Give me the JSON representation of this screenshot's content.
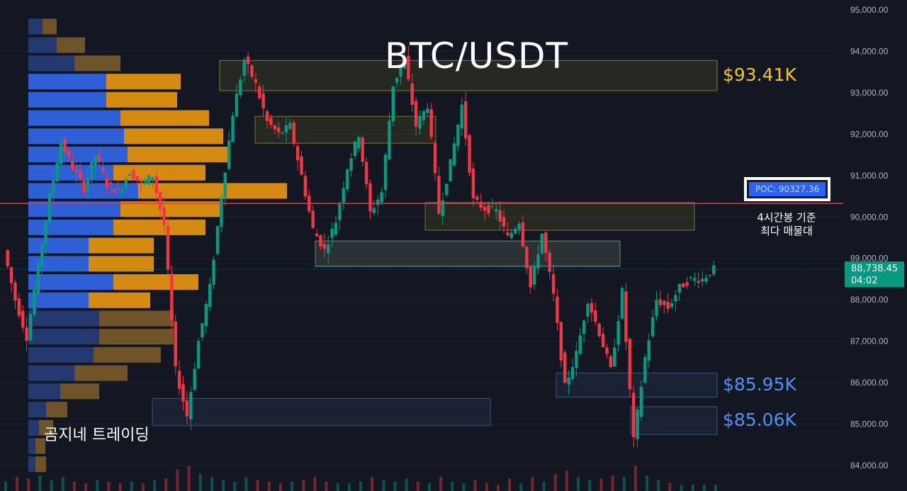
{
  "chart_data": {
    "type": "candlestick",
    "title": "BTC/USDT",
    "ylim": [
      83800,
      95250
    ],
    "y_ticks": [
      "95,000.00",
      "94,000.00",
      "93,000.00",
      "92,000.00",
      "91,000.00",
      "90,000.00",
      "89,000.00",
      "88,000.00",
      "87,000.00",
      "86,000.00",
      "85,000.00",
      "84,000.00"
    ],
    "y_tick_values": [
      95000,
      94000,
      93000,
      92000,
      91000,
      90000,
      89000,
      88000,
      87000,
      86000,
      85000,
      84000
    ],
    "last_price": "88,738.45",
    "countdown": "04:02",
    "last_price_value": 88738.45,
    "poc": {
      "label": "POC: 90327.36",
      "value": 90327.36
    },
    "poc_note_line1": "4시간봉 기준",
    "poc_note_line2": "최다 매물대",
    "watermark": "곰지네 트레이딩",
    "levels": [
      {
        "label": "$93.41K",
        "color": "#f5c518",
        "low": 93050,
        "high": 93780
      },
      {
        "label": "$85.95K",
        "color": "#4f8ff7",
        "low": 85650,
        "high": 86230
      },
      {
        "label": "$85.06K",
        "color": "#4f8ff7",
        "low": 84750,
        "high": 85420
      }
    ],
    "zones": [
      {
        "low": 91780,
        "high": 92430,
        "color": "yellow"
      },
      {
        "low": 89680,
        "high": 90350,
        "color": "yellow"
      },
      {
        "low": 88820,
        "high": 89420,
        "color": "yellow"
      },
      {
        "low": 88800,
        "high": 89420,
        "color": "blue"
      },
      {
        "low": 84960,
        "high": 85620,
        "color": "blue"
      }
    ],
    "volume_profile": [
      {
        "price": 94600,
        "buy": 20,
        "sell": 20
      },
      {
        "price": 94150,
        "buy": 40,
        "sell": 40
      },
      {
        "price": 93710,
        "buy": 65,
        "sell": 65
      },
      {
        "price": 93270,
        "buy": 110,
        "sell": 105
      },
      {
        "price": 92830,
        "buy": 110,
        "sell": 100
      },
      {
        "price": 92390,
        "buy": 130,
        "sell": 125
      },
      {
        "price": 91950,
        "buy": 135,
        "sell": 140
      },
      {
        "price": 91510,
        "buy": 140,
        "sell": 145
      },
      {
        "price": 91070,
        "buy": 120,
        "sell": 130
      },
      {
        "price": 90630,
        "buy": 155,
        "sell": 210
      },
      {
        "price": 90190,
        "buy": 130,
        "sell": 140
      },
      {
        "price": 89750,
        "buy": 120,
        "sell": 130
      },
      {
        "price": 89310,
        "buy": 85,
        "sell": 92
      },
      {
        "price": 88870,
        "buy": 85,
        "sell": 92
      },
      {
        "price": 88430,
        "buy": 120,
        "sell": 120
      },
      {
        "price": 87990,
        "buy": 85,
        "sell": 87
      },
      {
        "price": 87550,
        "buy": 100,
        "sell": 105
      },
      {
        "price": 87110,
        "buy": 100,
        "sell": 105
      },
      {
        "price": 86670,
        "buy": 92,
        "sell": 95
      },
      {
        "price": 86230,
        "buy": 65,
        "sell": 75
      },
      {
        "price": 85790,
        "buy": 45,
        "sell": 55
      },
      {
        "price": 85350,
        "buy": 25,
        "sell": 30
      },
      {
        "price": 84910,
        "buy": 15,
        "sell": 20
      },
      {
        "price": 84470,
        "buy": 10,
        "sell": 14
      },
      {
        "price": 84030,
        "buy": 10,
        "sell": 15
      }
    ],
    "close_path": [
      89200,
      88000,
      87100,
      88800,
      90500,
      91800,
      91200,
      90700,
      91500,
      90800,
      90600,
      91100,
      90800,
      91000,
      89800,
      86300,
      85200,
      87000,
      88300,
      90500,
      92500,
      93800,
      93200,
      92300,
      92000,
      92200,
      91000,
      89700,
      89200,
      89900,
      91200,
      92000,
      90100,
      90600,
      93200,
      93800,
      92200,
      92700,
      90100,
      91300,
      92700,
      90400,
      90200,
      90150,
      89500,
      89900,
      88300,
      89600,
      88100,
      85900,
      86700,
      88000,
      87200,
      86300,
      88200,
      84600,
      86600,
      88000,
      87800,
      88300,
      88500,
      88500,
      88739
    ],
    "volume": [
      0.6,
      0.9,
      0.8,
      1.0,
      0.7,
      0.9,
      0.6,
      0.5,
      0.7,
      0.6,
      0.5,
      0.6,
      0.5,
      0.7,
      0.8,
      1.4,
      1.6,
      1.1,
      0.9,
      0.7,
      0.6,
      0.9,
      0.7,
      0.6,
      0.5,
      0.6,
      0.7,
      0.9,
      0.6,
      0.5,
      0.5,
      0.6,
      0.9,
      0.7,
      0.6,
      0.8,
      0.6,
      0.5,
      0.9,
      0.6,
      0.5,
      0.7,
      0.5,
      0.4,
      0.8,
      0.5,
      0.9,
      0.6,
      1.1,
      1.3,
      0.9,
      0.7,
      0.8,
      1.0,
      0.9,
      1.6,
      1.0,
      0.7,
      0.5,
      0.4,
      0.4,
      0.4,
      0.4
    ]
  }
}
